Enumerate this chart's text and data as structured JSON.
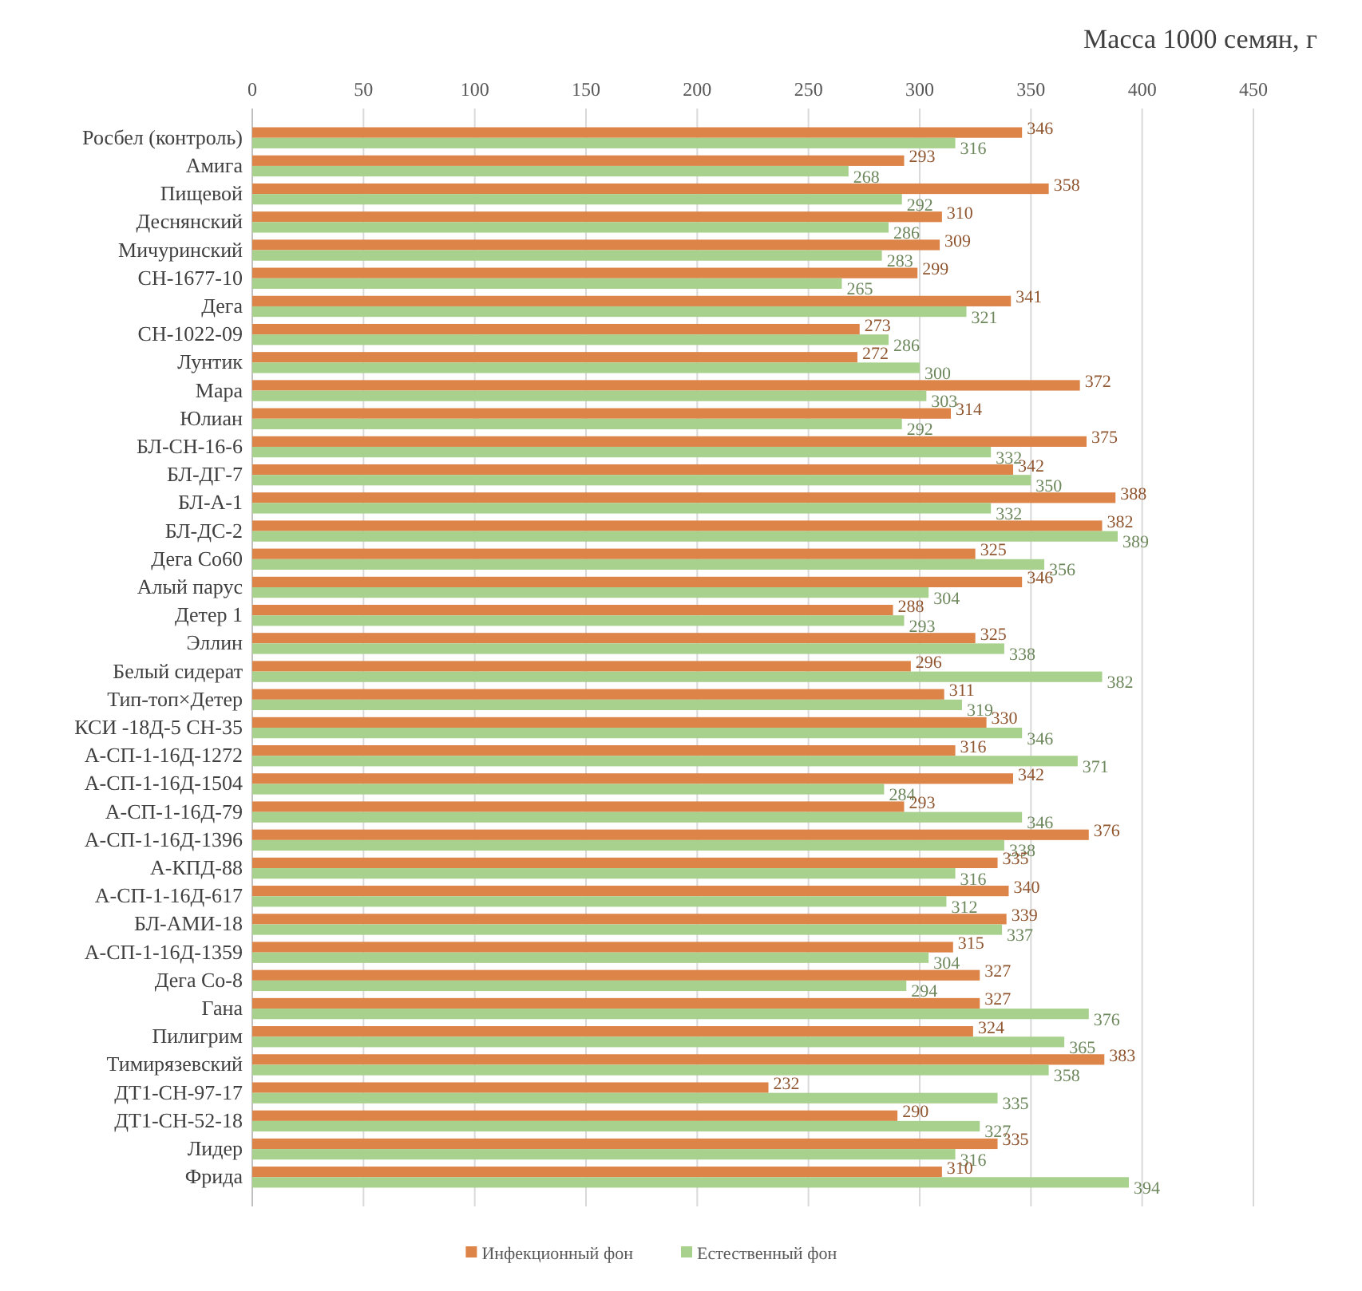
{
  "chart_data": {
    "type": "bar",
    "orientation": "horizontal",
    "title": "Масса  1000 семян, г",
    "categories": [
      "Росбел (контроль)",
      "Амига",
      "Пищевой",
      "Деснянский",
      "Мичуринский",
      "СН-1677-10",
      "Дега",
      "СН-1022-09",
      "Лунтик",
      "Мара",
      "Юлиан",
      "БЛ-СН-16-6",
      "БЛ-ДГ-7",
      "БЛ-А-1",
      "БЛ-ДС-2",
      "Дега Со60",
      "Алый парус",
      "Детер 1",
      "Эллин",
      "Белый сидерат",
      "Тип-топ×Детер",
      "КСИ -18Д-5 СН-35",
      "А-СП-1-16Д-1272",
      "А-СП-1-16Д-1504",
      "А-СП-1-16Д-79",
      "А-СП-1-16Д-1396",
      "А-КПД-88",
      "А-СП-1-16Д-617",
      "БЛ-АМИ-18",
      "А-СП-1-16Д-1359",
      "Дега Со-8",
      "Гана",
      "Пилигрим",
      "Тимирязевский",
      "ДТ1-СН-97-17",
      "ДТ1-СН-52-18",
      "Лидер",
      "Фрида"
    ],
    "series": [
      {
        "name": "Инфекционный фон",
        "color": "#dd8449",
        "values": [
          346,
          293,
          358,
          310,
          309,
          299,
          341,
          273,
          272,
          372,
          314,
          375,
          342,
          388,
          382,
          325,
          346,
          288,
          325,
          296,
          311,
          330,
          316,
          342,
          293,
          376,
          335,
          340,
          339,
          315,
          327,
          327,
          324,
          383,
          232,
          290,
          335,
          310
        ]
      },
      {
        "name": "Естественный фон",
        "color": "#a9d18e",
        "values": [
          316,
          268,
          292,
          286,
          283,
          265,
          321,
          286,
          300,
          303,
          292,
          332,
          350,
          332,
          389,
          356,
          304,
          293,
          338,
          382,
          319,
          346,
          371,
          284,
          346,
          338,
          316,
          312,
          337,
          304,
          294,
          376,
          365,
          358,
          335,
          327,
          316,
          394
        ]
      }
    ],
    "xlim": [
      0,
      450
    ],
    "xticks": [
      0,
      50,
      100,
      150,
      200,
      250,
      300,
      350,
      400,
      450
    ],
    "grid": "x",
    "legend": "bottom",
    "data_labels": true
  }
}
